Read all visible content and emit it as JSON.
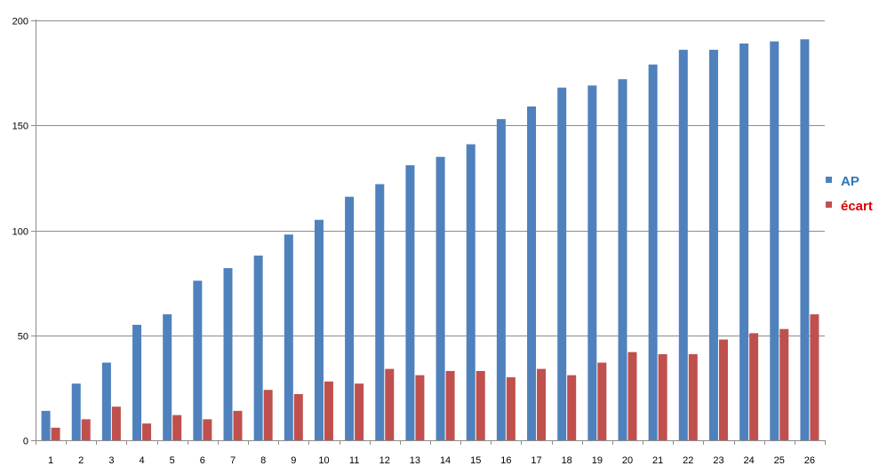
{
  "chart_data": {
    "type": "bar",
    "title": "",
    "xlabel": "",
    "ylabel": "",
    "ylim": [
      0,
      200
    ],
    "yticks": [
      0,
      50,
      100,
      150,
      200
    ],
    "grid": true,
    "legend_position": "right",
    "categories": [
      "1",
      "2",
      "3",
      "4",
      "5",
      "6",
      "7",
      "8",
      "9",
      "10",
      "11",
      "12",
      "13",
      "14",
      "15",
      "16",
      "17",
      "18",
      "19",
      "20",
      "21",
      "22",
      "23",
      "24",
      "25",
      "26"
    ],
    "series": [
      {
        "name": "AP",
        "color": "#4f81bd",
        "label_color": "#2e75b6",
        "values": [
          14,
          27,
          37,
          55,
          60,
          76,
          82,
          88,
          98,
          105,
          116,
          122,
          131,
          135,
          141,
          153,
          159,
          168,
          169,
          172,
          179,
          186,
          186,
          189,
          190,
          191
        ]
      },
      {
        "name": "écart",
        "color": "#c0504d",
        "label_color": "#e00000",
        "values": [
          6,
          10,
          16,
          8,
          12,
          10,
          14,
          24,
          22,
          28,
          27,
          34,
          31,
          33,
          33,
          30,
          34,
          31,
          37,
          42,
          41,
          41,
          48,
          51,
          53,
          60
        ]
      }
    ]
  }
}
